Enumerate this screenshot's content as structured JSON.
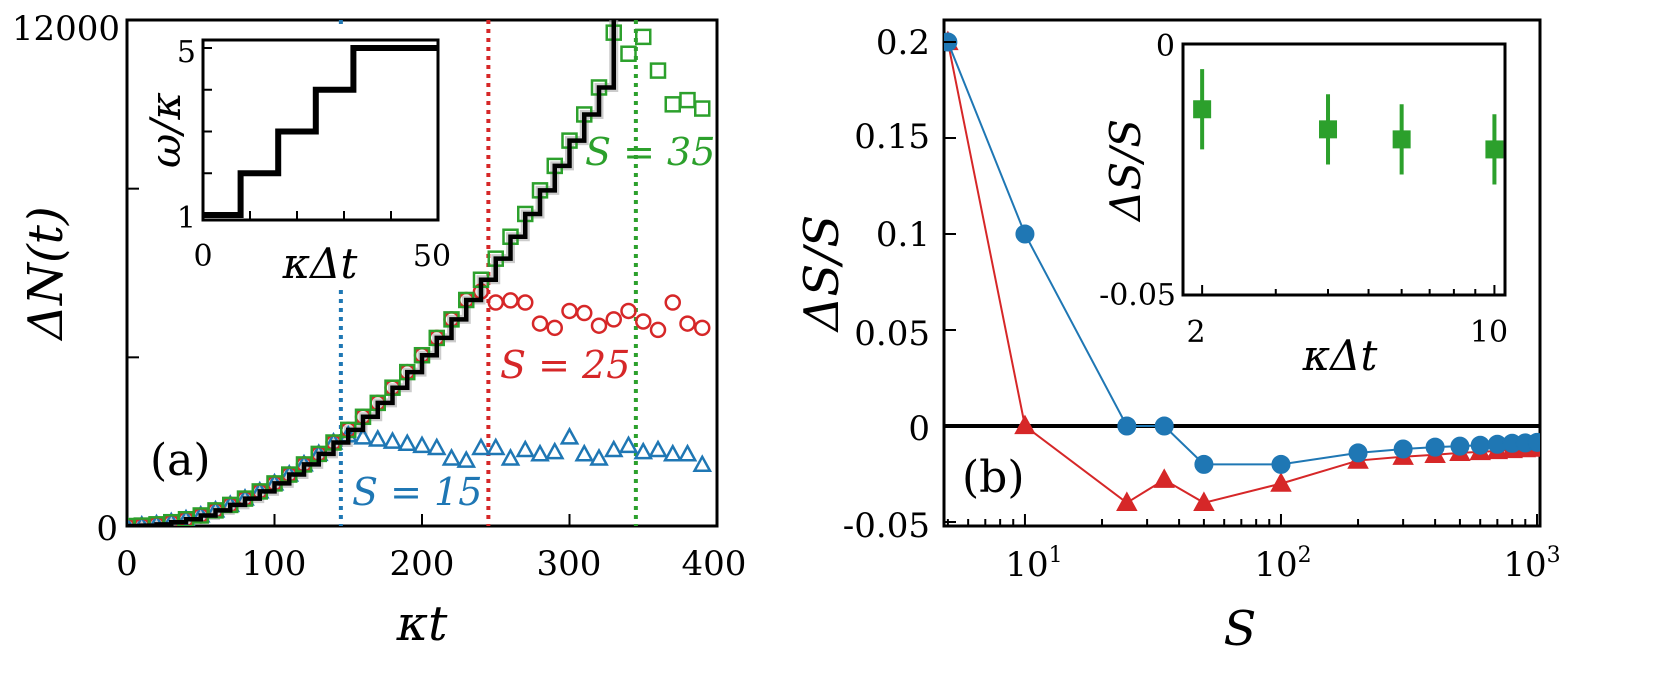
{
  "chart_data": [
    {
      "panel": "a",
      "type": "scatter",
      "panel_label": "(a)",
      "xlabel": "κt",
      "ylabel": "ΔN(t)",
      "xlim": [
        0,
        400
      ],
      "ylim": [
        0,
        12000
      ],
      "x_ticks": [
        "0",
        "100",
        "200",
        "300",
        "400"
      ],
      "y_ticks": [
        "0",
        "12000"
      ],
      "reference": {
        "name": "staircase",
        "color": "#000000",
        "x": [
          0,
          10,
          20,
          30,
          40,
          50,
          60,
          70,
          80,
          90,
          100,
          110,
          120,
          130,
          140,
          150,
          160,
          170,
          180,
          190,
          200,
          210,
          220,
          230,
          240,
          250,
          260,
          270,
          280,
          290,
          300,
          310,
          320,
          330
        ],
        "y": [
          0,
          10,
          40,
          90,
          160,
          250,
          370,
          500,
          650,
          820,
          1010,
          1220,
          1460,
          1710,
          1980,
          2280,
          2590,
          2920,
          3280,
          3650,
          4050,
          4460,
          4900,
          5360,
          5840,
          6340,
          6860,
          7400,
          7960,
          8540,
          9140,
          9760,
          10400,
          12000
        ]
      },
      "vlines": [
        {
          "x": 145,
          "color": "#1f77b4"
        },
        {
          "x": 245,
          "color": "#d62728"
        },
        {
          "x": 345,
          "color": "#2ca02c"
        }
      ],
      "series": [
        {
          "name": "S = 15",
          "label": "S = 15",
          "marker": "triangle",
          "color": "#1f77b4",
          "x": [
            0,
            10,
            20,
            30,
            40,
            50,
            60,
            70,
            80,
            90,
            100,
            110,
            120,
            130,
            140,
            150,
            160,
            170,
            180,
            190,
            200,
            210,
            220,
            230,
            240,
            250,
            260,
            270,
            280,
            290,
            300,
            310,
            320,
            330,
            340,
            350,
            360,
            370,
            380,
            390
          ],
          "y": [
            0,
            10,
            40,
            90,
            160,
            250,
            370,
            500,
            650,
            820,
            1010,
            1220,
            1460,
            1710,
            1980,
            2150,
            2100,
            2050,
            2000,
            1950,
            1900,
            1850,
            1600,
            1550,
            1850,
            1850,
            1600,
            1800,
            1700,
            1750,
            2100,
            1700,
            1600,
            1800,
            1900,
            1750,
            1800,
            1700,
            1700,
            1450
          ]
        },
        {
          "name": "S = 25",
          "label": "S = 25",
          "marker": "circle",
          "color": "#d62728",
          "x": [
            0,
            10,
            20,
            30,
            40,
            50,
            60,
            70,
            80,
            90,
            100,
            110,
            120,
            130,
            140,
            150,
            160,
            170,
            180,
            190,
            200,
            210,
            220,
            230,
            240,
            250,
            260,
            270,
            280,
            290,
            300,
            310,
            320,
            330,
            340,
            350,
            360,
            370,
            380,
            390
          ],
          "y": [
            0,
            10,
            40,
            90,
            160,
            250,
            370,
            500,
            650,
            820,
            1010,
            1220,
            1460,
            1710,
            1980,
            2280,
            2590,
            2920,
            3280,
            3650,
            4050,
            4460,
            4900,
            5360,
            5560,
            5300,
            5350,
            5300,
            4800,
            4700,
            5100,
            5050,
            4750,
            4900,
            5100,
            4850,
            4650,
            5300,
            4800,
            4700
          ]
        },
        {
          "name": "S = 35",
          "label": "S = 35",
          "marker": "square",
          "color": "#2ca02c",
          "x": [
            0,
            10,
            20,
            30,
            40,
            50,
            60,
            70,
            80,
            90,
            100,
            110,
            120,
            130,
            140,
            150,
            160,
            170,
            180,
            190,
            200,
            210,
            220,
            230,
            240,
            250,
            260,
            270,
            280,
            290,
            300,
            310,
            320,
            330,
            340,
            350,
            360,
            370,
            380,
            390
          ],
          "y": [
            0,
            10,
            40,
            90,
            160,
            250,
            370,
            500,
            650,
            820,
            1010,
            1220,
            1460,
            1710,
            1980,
            2280,
            2590,
            2920,
            3280,
            3650,
            4050,
            4460,
            4900,
            5360,
            5840,
            6340,
            6860,
            7400,
            7960,
            8540,
            9140,
            9760,
            10400,
            11700,
            11200,
            11600,
            10800,
            10000,
            10100,
            9900
          ]
        }
      ],
      "inset": {
        "type": "line",
        "xlabel": "κΔt",
        "ylabel": "ω/κ",
        "xlim": [
          0,
          50
        ],
        "ylim": [
          1,
          5
        ],
        "x_ticks": [
          "0",
          "50"
        ],
        "y_ticks": [
          "1",
          "5"
        ],
        "x": [
          0,
          8,
          8,
          16,
          16,
          24,
          24,
          32,
          32,
          40,
          40,
          50
        ],
        "y": [
          1,
          1,
          2,
          2,
          3,
          3,
          4,
          4,
          5,
          5,
          5,
          5
        ],
        "color": "#000000"
      }
    },
    {
      "panel": "b",
      "type": "line",
      "panel_label": "(b)",
      "xlabel": "S",
      "ylabel": "ΔS/S",
      "xscale": "log",
      "xlim": [
        5,
        1000
      ],
      "ylim": [
        -0.05,
        0.2
      ],
      "x_ticks": [
        {
          "base": "10",
          "exp": "1",
          "value": 10
        },
        {
          "base": "10",
          "exp": "2",
          "value": 100
        },
        {
          "base": "10",
          "exp": "3",
          "value": 1000
        }
      ],
      "y_ticks": [
        "0.2",
        "0.15",
        "0.1",
        "0.05",
        "0",
        "-0.05"
      ],
      "hline": 0,
      "series": [
        {
          "name": "blue circles",
          "marker": "circle",
          "color": "#1f77b4",
          "x": [
            5,
            10,
            25,
            35,
            50,
            100,
            200,
            300,
            400,
            500,
            600,
            700,
            800,
            900,
            1000
          ],
          "y": [
            0.2,
            0.1,
            0.0,
            0.0,
            -0.02,
            -0.02,
            -0.014,
            -0.012,
            -0.011,
            -0.0105,
            -0.01,
            -0.0095,
            -0.009,
            -0.0088,
            -0.0085
          ]
        },
        {
          "name": "red triangles",
          "marker": "triangle",
          "color": "#d62728",
          "x": [
            5,
            10,
            25,
            35,
            50,
            100,
            200,
            300,
            400,
            500,
            600,
            700,
            800,
            900,
            1000
          ],
          "y": [
            0.2,
            0.0,
            -0.04,
            -0.028,
            -0.04,
            -0.03,
            -0.018,
            -0.016,
            -0.015,
            -0.014,
            -0.0135,
            -0.013,
            -0.0125,
            -0.012,
            -0.0118
          ]
        }
      ],
      "inset": {
        "type": "errorbar",
        "xlabel": "κΔt",
        "ylabel": "ΔS/S",
        "xlim": [
          1.8,
          10.6
        ],
        "ylim": [
          -0.05,
          0
        ],
        "x_ticks": [
          "2",
          "10"
        ],
        "y_ticks": [
          "0",
          "-0.05"
        ],
        "color": "#2ca02c",
        "x": [
          2,
          4,
          6,
          10
        ],
        "y": [
          -0.013,
          -0.017,
          -0.019,
          -0.021
        ],
        "yerr": [
          0.008,
          0.007,
          0.007,
          0.007
        ]
      }
    }
  ]
}
